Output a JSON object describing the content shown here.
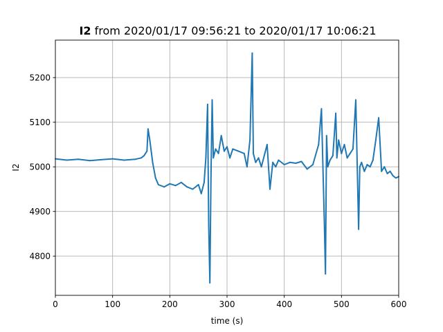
{
  "chart_data": {
    "type": "line",
    "title_bold": "I2",
    "title_rest": " from 2020/01/17 09:56:21 to 2020/01/17 10:06:21",
    "xlabel": "time (s)",
    "ylabel": "I2",
    "xlim": [
      0,
      600
    ],
    "ylim": [
      4712,
      5284
    ],
    "grid": true,
    "line_color": "#1f77b4",
    "x_ticks": [
      0,
      100,
      200,
      300,
      400,
      500,
      600
    ],
    "y_ticks": [
      4800,
      4900,
      5000,
      5100,
      5200
    ],
    "series": [
      {
        "x": [
          0,
          20,
          40,
          60,
          80,
          100,
          120,
          140,
          150,
          155,
          160,
          162,
          165,
          168,
          170,
          175,
          180,
          190,
          200,
          210,
          220,
          230,
          240,
          250,
          255,
          260,
          263,
          266,
          268,
          270,
          272,
          274,
          276,
          280,
          285,
          290,
          295,
          300,
          305,
          310,
          320,
          330,
          335,
          340,
          344,
          346,
          350,
          355,
          360,
          370,
          375,
          380,
          385,
          390,
          400,
          410,
          420,
          430,
          440,
          450,
          460,
          465,
          470,
          472,
          474,
          476,
          480,
          485,
          490,
          492,
          495,
          500,
          505,
          510,
          515,
          520,
          525,
          530,
          532,
          535,
          540,
          545,
          550,
          555,
          560,
          565,
          570,
          575,
          580,
          585,
          590,
          595,
          600
        ],
        "y": [
          5018,
          5015,
          5017,
          5014,
          5016,
          5018,
          5015,
          5017,
          5020,
          5025,
          5035,
          5085,
          5060,
          5030,
          5010,
          4975,
          4960,
          4955,
          4962,
          4958,
          4965,
          4955,
          4950,
          4960,
          4940,
          4965,
          5020,
          5140,
          4870,
          4740,
          4990,
          5150,
          5020,
          5040,
          5030,
          5070,
          5035,
          5045,
          5020,
          5040,
          5035,
          5030,
          5000,
          5060,
          5255,
          5030,
          5010,
          5020,
          5000,
          5050,
          4950,
          5010,
          5000,
          5015,
          5005,
          5010,
          5008,
          5012,
          4995,
          5005,
          5050,
          5130,
          4880,
          4760,
          5070,
          5000,
          5015,
          5025,
          5120,
          5020,
          5060,
          5030,
          5050,
          5020,
          5030,
          5040,
          5150,
          4860,
          5000,
          5010,
          4990,
          5005,
          5000,
          5015,
          5060,
          5110,
          4990,
          5000,
          4985,
          4990,
          4980,
          4975,
          4978
        ]
      }
    ]
  }
}
